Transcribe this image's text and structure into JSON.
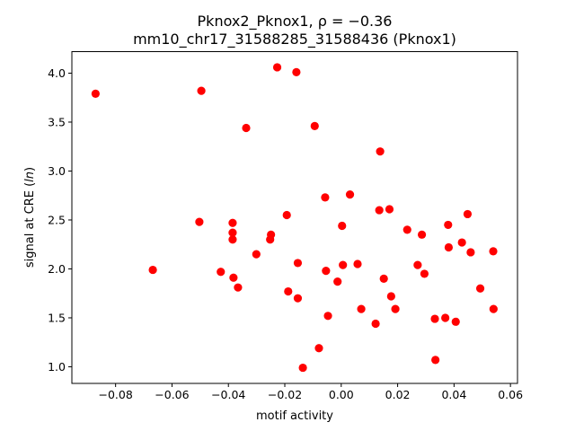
{
  "chart_data": {
    "type": "scatter",
    "title_line1": "Pknox2_Pknox1, ",
    "title_rho": "ρ = −0.36",
    "title_line2": "mm10_chr17_31588285_31588436 (Pknox1)",
    "xlabel": "motif activity",
    "ylabel_prefix": "signal at CRE (",
    "ylabel_italic": "ln",
    "ylabel_suffix": ")",
    "xlim": [
      -0.0955,
      0.0625
    ],
    "ylim": [
      0.83,
      4.22
    ],
    "xticks": [
      -0.08,
      -0.06,
      -0.04,
      -0.02,
      0.0,
      0.02,
      0.04,
      0.06
    ],
    "xtick_labels": [
      "−0.08",
      "−0.06",
      "−0.04",
      "−0.02",
      "0.00",
      "0.02",
      "0.04",
      "0.06"
    ],
    "yticks": [
      1.0,
      1.5,
      2.0,
      2.5,
      3.0,
      3.5,
      4.0
    ],
    "ytick_labels": [
      "1.0",
      "1.5",
      "2.0",
      "2.5",
      "3.0",
      "3.5",
      "4.0"
    ],
    "marker_color": "#ff0000",
    "points": [
      {
        "x": -0.0871,
        "y": 3.79
      },
      {
        "x": -0.0668,
        "y": 1.99
      },
      {
        "x": -0.0503,
        "y": 2.48
      },
      {
        "x": -0.0496,
        "y": 3.82
      },
      {
        "x": -0.0427,
        "y": 1.97
      },
      {
        "x": -0.0385,
        "y": 2.47
      },
      {
        "x": -0.0385,
        "y": 2.37
      },
      {
        "x": -0.0385,
        "y": 2.3
      },
      {
        "x": -0.0382,
        "y": 1.91
      },
      {
        "x": -0.0366,
        "y": 1.81
      },
      {
        "x": -0.0337,
        "y": 3.44
      },
      {
        "x": -0.0301,
        "y": 2.15
      },
      {
        "x": -0.0252,
        "y": 2.3
      },
      {
        "x": -0.0249,
        "y": 2.35
      },
      {
        "x": -0.0227,
        "y": 4.06
      },
      {
        "x": -0.0193,
        "y": 2.55
      },
      {
        "x": -0.0188,
        "y": 1.77
      },
      {
        "x": -0.0159,
        "y": 4.01
      },
      {
        "x": -0.0154,
        "y": 2.06
      },
      {
        "x": -0.0154,
        "y": 1.7
      },
      {
        "x": -0.0136,
        "y": 0.99
      },
      {
        "x": -0.0094,
        "y": 3.46
      },
      {
        "x": -0.0079,
        "y": 1.19
      },
      {
        "x": -0.0057,
        "y": 2.73
      },
      {
        "x": -0.0054,
        "y": 1.98
      },
      {
        "x": -0.0047,
        "y": 1.52
      },
      {
        "x": -0.0013,
        "y": 1.87
      },
      {
        "x": 0.0003,
        "y": 2.44
      },
      {
        "x": 0.0006,
        "y": 2.04
      },
      {
        "x": 0.0031,
        "y": 2.76
      },
      {
        "x": 0.0058,
        "y": 2.05
      },
      {
        "x": 0.0071,
        "y": 1.59
      },
      {
        "x": 0.0122,
        "y": 1.44
      },
      {
        "x": 0.0135,
        "y": 2.6
      },
      {
        "x": 0.0138,
        "y": 3.2
      },
      {
        "x": 0.0151,
        "y": 1.9
      },
      {
        "x": 0.0171,
        "y": 2.61
      },
      {
        "x": 0.0177,
        "y": 1.72
      },
      {
        "x": 0.0192,
        "y": 1.59
      },
      {
        "x": 0.0234,
        "y": 2.4
      },
      {
        "x": 0.0271,
        "y": 2.04
      },
      {
        "x": 0.0286,
        "y": 2.35
      },
      {
        "x": 0.0295,
        "y": 1.95
      },
      {
        "x": 0.0332,
        "y": 1.49
      },
      {
        "x": 0.0334,
        "y": 1.07
      },
      {
        "x": 0.0369,
        "y": 1.5
      },
      {
        "x": 0.0379,
        "y": 2.45
      },
      {
        "x": 0.0381,
        "y": 2.22
      },
      {
        "x": 0.0406,
        "y": 1.46
      },
      {
        "x": 0.0428,
        "y": 2.27
      },
      {
        "x": 0.0448,
        "y": 2.56
      },
      {
        "x": 0.0459,
        "y": 2.17
      },
      {
        "x": 0.0493,
        "y": 1.8
      },
      {
        "x": 0.0539,
        "y": 2.18
      },
      {
        "x": 0.054,
        "y": 1.59
      }
    ]
  }
}
